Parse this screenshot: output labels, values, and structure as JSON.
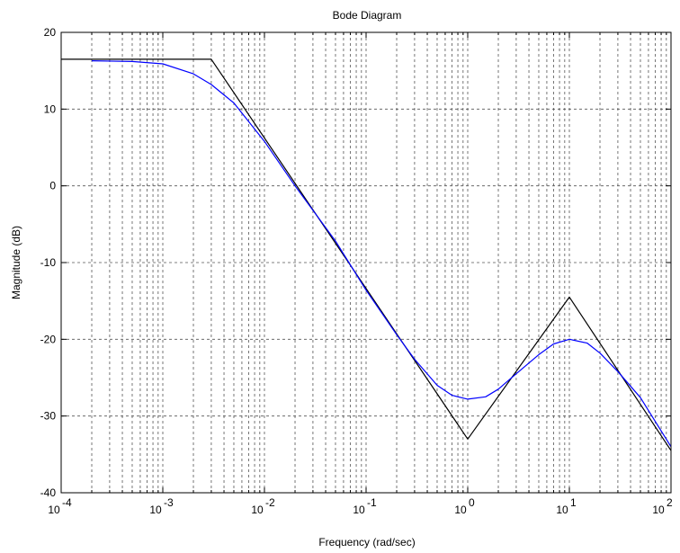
{
  "chart_data": {
    "type": "line",
    "title": "Bode Diagram",
    "xlabel": "Frequency  (rad/sec)",
    "ylabel": "Magnitude (dB)",
    "x_scale": "log",
    "xlim": [
      0.0001,
      100
    ],
    "ylim": [
      -40,
      20
    ],
    "grid": true,
    "x_ticks": [
      {
        "value": 0.0001,
        "base": "10",
        "exp": "-4"
      },
      {
        "value": 0.001,
        "base": "10",
        "exp": "-3"
      },
      {
        "value": 0.01,
        "base": "10",
        "exp": "-2"
      },
      {
        "value": 0.1,
        "base": "10",
        "exp": "-1"
      },
      {
        "value": 1,
        "base": "10",
        "exp": "0"
      },
      {
        "value": 10,
        "base": "10",
        "exp": "1"
      },
      {
        "value": 100,
        "base": "10",
        "exp": "2"
      }
    ],
    "y_ticks": [
      {
        "value": 20,
        "label": "20"
      },
      {
        "value": 10,
        "label": "10"
      },
      {
        "value": 0,
        "label": "0"
      },
      {
        "value": -10,
        "label": "-10"
      },
      {
        "value": -20,
        "label": "-20"
      },
      {
        "value": -30,
        "label": "-30"
      },
      {
        "value": -40,
        "label": "-40"
      }
    ],
    "series": [
      {
        "color": "#000000",
        "x": [
          0.0001,
          0.003,
          1,
          10,
          100
        ],
        "y": [
          16.5,
          16.5,
          -33,
          -14.5,
          -34.5
        ]
      },
      {
        "color": "#0000ff",
        "x": [
          0.0002,
          0.0005,
          0.001,
          0.002,
          0.003,
          0.005,
          0.01,
          0.02,
          0.05,
          0.1,
          0.2,
          0.3,
          0.5,
          0.7,
          1,
          1.5,
          2,
          3,
          5,
          7,
          10,
          15,
          20,
          30,
          50,
          100
        ],
        "y": [
          16.3,
          16.2,
          15.9,
          14.6,
          13.2,
          10.8,
          5.8,
          0,
          -7.2,
          -13.6,
          -19.4,
          -22.6,
          -26,
          -27.3,
          -27.8,
          -27.5,
          -26.5,
          -24.5,
          -22,
          -20.6,
          -20,
          -20.5,
          -21.8,
          -24.2,
          -27.6,
          -34
        ]
      }
    ]
  }
}
